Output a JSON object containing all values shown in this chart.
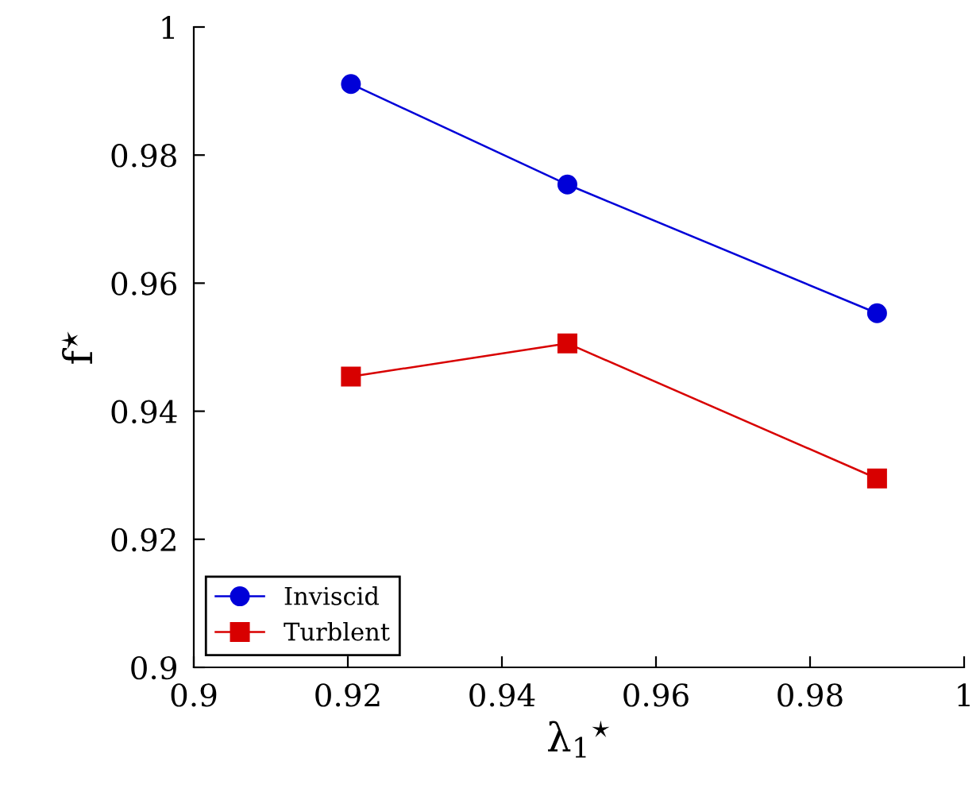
{
  "chart_data": {
    "type": "line",
    "xlabel": "λ$_{1}$$^{⋆}$",
    "ylabel": "f$^{⋆}$",
    "x": [
      0.9204,
      0.9485,
      0.9887
    ],
    "series": [
      {
        "name": "Inviscid",
        "color": "#0000d8",
        "marker": "circle",
        "values": [
          0.9911,
          0.9754,
          0.9553
        ]
      },
      {
        "name": "Turblent",
        "color": "#d80000",
        "marker": "square",
        "values": [
          0.9454,
          0.9506,
          0.9295
        ]
      }
    ],
    "xlim": [
      0.9,
      1
    ],
    "xticks": [
      0.9,
      0.92,
      0.94,
      0.96,
      0.98,
      1
    ],
    "ylim": [
      0.9,
      1
    ],
    "yticks": [
      0.9,
      0.92,
      0.94,
      0.96,
      0.98,
      1
    ],
    "grid": false,
    "legend": "bottom left",
    "line_style": "solid"
  }
}
